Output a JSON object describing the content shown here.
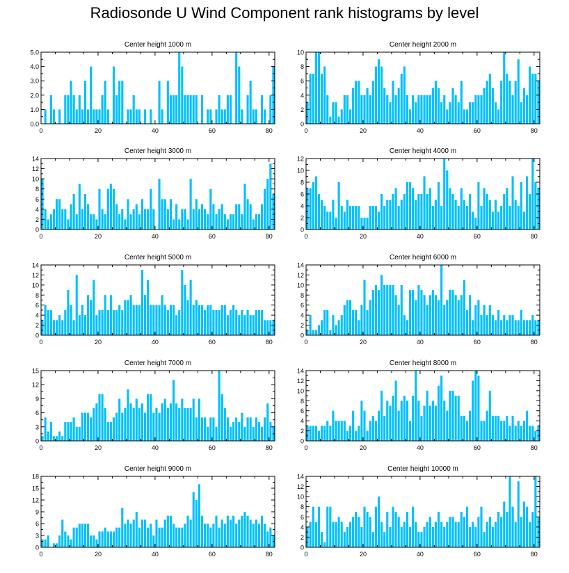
{
  "title": "Radiosonde U Wind Component rank histograms by level",
  "colors": {
    "bar": "#00BFFF",
    "axis": "#000000",
    "background": "#FFFFFF"
  },
  "chart_data": [
    {
      "type": "bar",
      "title": "Center height 1000 m",
      "xlabel": "",
      "ylabel": "",
      "xlim": [
        0,
        82
      ],
      "ylim": [
        0,
        5
      ],
      "xticks": [
        "0",
        "20",
        "40",
        "60",
        "80"
      ],
      "yticks": [
        "0.0",
        "1.0",
        "2.0",
        "3.0",
        "4.0",
        "5.0"
      ],
      "values": [
        0,
        1,
        0,
        2,
        1,
        0,
        1,
        0,
        2,
        2,
        3,
        2,
        1,
        2,
        1,
        3,
        1,
        4,
        1,
        1,
        1,
        2,
        3,
        1,
        0,
        4,
        2,
        3,
        3,
        0,
        1,
        1,
        2,
        1,
        1,
        0,
        1,
        0,
        1,
        0,
        0,
        3,
        1,
        0,
        3,
        2,
        2,
        2,
        5,
        4,
        2,
        2,
        2,
        2,
        2,
        0,
        2,
        0,
        1,
        1,
        0,
        1,
        2,
        1,
        1,
        2,
        2,
        0,
        5,
        4,
        1,
        0,
        2,
        3,
        1,
        1,
        0,
        2,
        1,
        0,
        2,
        4
      ]
    },
    {
      "type": "bar",
      "title": "Center height 2000 m",
      "xlabel": "",
      "ylabel": "",
      "xlim": [
        0,
        82
      ],
      "ylim": [
        0,
        10
      ],
      "xticks": [
        "0",
        "20",
        "40",
        "60",
        "80"
      ],
      "yticks": [
        "0",
        "2",
        "4",
        "6",
        "8",
        "10"
      ],
      "values": [
        3,
        7,
        7,
        10,
        10,
        7,
        8,
        4,
        1,
        3,
        3,
        1,
        2,
        4,
        4,
        2,
        5,
        6,
        6,
        4,
        4,
        5,
        4,
        6,
        8,
        9,
        8,
        5,
        4,
        3,
        6,
        4,
        5,
        7,
        8,
        4,
        2,
        4,
        3,
        4,
        4,
        4,
        4,
        4,
        5,
        6,
        5,
        3,
        4,
        2,
        3,
        5,
        4,
        3,
        6,
        2,
        2,
        3,
        3,
        4,
        4,
        4,
        5,
        6,
        7,
        5,
        3,
        2,
        6,
        10,
        7,
        6,
        4,
        6,
        9,
        3,
        5,
        4,
        8,
        7,
        7,
        6
      ]
    },
    {
      "type": "bar",
      "title": "Center height 3000 m",
      "xlabel": "",
      "ylabel": "",
      "xlim": [
        0,
        82
      ],
      "ylim": [
        0,
        14
      ],
      "xticks": [
        "0",
        "20",
        "40",
        "60",
        "80"
      ],
      "yticks": [
        "0",
        "2",
        "4",
        "6",
        "8",
        "10",
        "12",
        "14"
      ],
      "values": [
        10,
        4,
        2,
        3,
        4,
        6,
        6,
        4,
        4,
        2,
        5,
        7,
        3,
        9,
        4,
        7,
        5,
        3,
        3,
        2,
        8,
        4,
        3,
        8,
        9,
        8,
        5,
        3,
        4,
        2,
        6,
        3,
        4,
        5,
        3,
        6,
        4,
        4,
        8,
        4,
        0,
        10,
        6,
        6,
        4,
        6,
        2,
        5,
        2,
        4,
        4,
        2,
        10,
        4,
        6,
        4,
        5,
        4,
        3,
        8,
        5,
        3,
        4,
        5,
        3,
        2,
        3,
        3,
        5,
        5,
        3,
        9,
        6,
        5,
        2,
        3,
        3,
        5,
        8,
        10,
        13,
        7
      ]
    },
    {
      "type": "bar",
      "title": "Center height 4000 m",
      "xlabel": "",
      "ylabel": "",
      "xlim": [
        0,
        82
      ],
      "ylim": [
        0,
        12
      ],
      "xticks": [
        "0",
        "20",
        "40",
        "60",
        "80"
      ],
      "yticks": [
        "0",
        "2",
        "4",
        "6",
        "8",
        "10",
        "12"
      ],
      "values": [
        7,
        7,
        8,
        9,
        6,
        5,
        4,
        3,
        3,
        5,
        2,
        8,
        4,
        3,
        5,
        4,
        4,
        4,
        4,
        2,
        2,
        2,
        4,
        4,
        4,
        3,
        6,
        4,
        5,
        5,
        6,
        7,
        4,
        5,
        6,
        8,
        8,
        7,
        5,
        6,
        6,
        9,
        6,
        7,
        4,
        5,
        8,
        4,
        12,
        10,
        7,
        6,
        5,
        4,
        7,
        5,
        4,
        6,
        3,
        2,
        8,
        4,
        7,
        6,
        5,
        3,
        5,
        3,
        4,
        6,
        7,
        4,
        9,
        5,
        4,
        8,
        3,
        9,
        6,
        12,
        8,
        7
      ]
    },
    {
      "type": "bar",
      "title": "Center height 5000 m",
      "xlabel": "",
      "ylabel": "",
      "xlim": [
        0,
        82
      ],
      "ylim": [
        0,
        14
      ],
      "xticks": [
        "0",
        "20",
        "40",
        "60",
        "80"
      ],
      "yticks": [
        "0",
        "2",
        "4",
        "6",
        "8",
        "10",
        "12",
        "14"
      ],
      "values": [
        3,
        6,
        5,
        5,
        3,
        3,
        4,
        3,
        5,
        9,
        6,
        3,
        12,
        4,
        6,
        4,
        8,
        7,
        11,
        4,
        5,
        5,
        8,
        5,
        8,
        5,
        5,
        6,
        5,
        7,
        7,
        8,
        6,
        6,
        6,
        13,
        8,
        11,
        6,
        6,
        6,
        6,
        8,
        6,
        5,
        6,
        6,
        4,
        5,
        13,
        10,
        7,
        11,
        6,
        7,
        6,
        6,
        5,
        6,
        6,
        5,
        5,
        5,
        6,
        6,
        4,
        5,
        6,
        5,
        4,
        5,
        4,
        5,
        4,
        4,
        5,
        5,
        5,
        3,
        3,
        3,
        3
      ]
    },
    {
      "type": "bar",
      "title": "Center height 6000 m",
      "xlabel": "",
      "ylabel": "",
      "xlim": [
        0,
        82
      ],
      "ylim": [
        0,
        14
      ],
      "xticks": [
        "0",
        "20",
        "40",
        "60",
        "80"
      ],
      "yticks": [
        "0",
        "2",
        "4",
        "6",
        "8",
        "10",
        "12",
        "14"
      ],
      "values": [
        1,
        4,
        1,
        1,
        2,
        3,
        5,
        5,
        1,
        4,
        2,
        3,
        4,
        6,
        7,
        7,
        5,
        5,
        3,
        6,
        11,
        5,
        7,
        9,
        10,
        9,
        12,
        10,
        10,
        10,
        10,
        8,
        6,
        10,
        4,
        3,
        9,
        9,
        7,
        10,
        9,
        8,
        6,
        8,
        9,
        8,
        7,
        14,
        6,
        7,
        9,
        9,
        8,
        7,
        8,
        11,
        5,
        8,
        3,
        6,
        7,
        4,
        6,
        4,
        6,
        4,
        3,
        5,
        3,
        4,
        3,
        4,
        4,
        3,
        3,
        5,
        3,
        3,
        3,
        4,
        3,
        3
      ]
    },
    {
      "type": "bar",
      "title": "Center height 7000 m",
      "xlabel": "",
      "ylabel": "",
      "xlim": [
        0,
        82
      ],
      "ylim": [
        0,
        15
      ],
      "xticks": [
        "0",
        "20",
        "40",
        "60",
        "80"
      ],
      "yticks": [
        "0",
        "3",
        "6",
        "9",
        "12",
        "15"
      ],
      "values": [
        1,
        5,
        2,
        4,
        1,
        1,
        2,
        1,
        4,
        4,
        4,
        5,
        3,
        3,
        6,
        6,
        6,
        5,
        7,
        8,
        10,
        10,
        7,
        4,
        4,
        5,
        6,
        9,
        6,
        7,
        11,
        8,
        7,
        9,
        7,
        8,
        6,
        10,
        10,
        6,
        7,
        6,
        8,
        9,
        7,
        8,
        13,
        8,
        7,
        9,
        7,
        7,
        7,
        9,
        5,
        9,
        5,
        5,
        3,
        5,
        5,
        3,
        15,
        10,
        7,
        5,
        3,
        4,
        5,
        4,
        6,
        3,
        5,
        5,
        3,
        5,
        4,
        3,
        5,
        8,
        4,
        3
      ]
    },
    {
      "type": "bar",
      "title": "Center height 8000 m",
      "xlabel": "",
      "ylabel": "",
      "xlim": [
        0,
        82
      ],
      "ylim": [
        0,
        14
      ],
      "xticks": [
        "0",
        "20",
        "40",
        "60",
        "80"
      ],
      "yticks": [
        "0",
        "2",
        "4",
        "6",
        "8",
        "10",
        "12",
        "14"
      ],
      "values": [
        3,
        3,
        3,
        3,
        2,
        3,
        3,
        4,
        3,
        6,
        4,
        4,
        4,
        4,
        2,
        3,
        6,
        2,
        3,
        8,
        6,
        2,
        4,
        5,
        4,
        6,
        10,
        5,
        8,
        7,
        9,
        12,
        6,
        8,
        9,
        8,
        4,
        9,
        14,
        8,
        5,
        7,
        10,
        7,
        8,
        7,
        11,
        13,
        8,
        6,
        10,
        10,
        9,
        9,
        5,
        5,
        4,
        6,
        12,
        14,
        13,
        4,
        4,
        6,
        10,
        5,
        5,
        5,
        4,
        4,
        5,
        3,
        5,
        3,
        4,
        3,
        4,
        6,
        3,
        3,
        2,
        3
      ]
    },
    {
      "type": "bar",
      "title": "Center height 9000 m",
      "xlabel": "",
      "ylabel": "",
      "xlim": [
        0,
        82
      ],
      "ylim": [
        0,
        18
      ],
      "xticks": [
        "0",
        "20",
        "40",
        "60",
        "80"
      ],
      "yticks": [
        "0",
        "3",
        "6",
        "9",
        "12",
        "15",
        "18"
      ],
      "values": [
        2,
        2,
        3,
        0,
        1,
        1,
        3,
        7,
        4,
        3,
        2,
        5,
        5,
        6,
        6,
        6,
        6,
        3,
        3,
        2,
        4,
        4,
        5,
        4,
        4,
        4,
        5,
        5,
        10,
        6,
        7,
        6,
        7,
        9,
        5,
        7,
        7,
        5,
        6,
        3,
        7,
        5,
        5,
        7,
        8,
        8,
        6,
        5,
        5,
        5,
        6,
        8,
        7,
        14,
        12,
        16,
        8,
        6,
        6,
        5,
        6,
        8,
        5,
        7,
        6,
        8,
        7,
        8,
        6,
        7,
        8,
        9,
        8,
        7,
        6,
        7,
        6,
        8,
        6,
        4,
        5,
        3
      ]
    },
    {
      "type": "bar",
      "title": "Center height 10000 m",
      "xlabel": "",
      "ylabel": "",
      "xlim": [
        0,
        82
      ],
      "ylim": [
        0,
        14
      ],
      "xticks": [
        "0",
        "20",
        "40",
        "60",
        "80"
      ],
      "yticks": [
        "0",
        "2",
        "4",
        "6",
        "8",
        "10",
        "12",
        "14"
      ],
      "values": [
        4,
        5,
        8,
        5,
        8,
        3,
        1,
        8,
        8,
        5,
        5,
        6,
        5,
        3,
        4,
        5,
        6,
        7,
        6,
        4,
        8,
        7,
        6,
        3,
        8,
        10,
        5,
        3,
        7,
        4,
        8,
        7,
        6,
        4,
        5,
        7,
        4,
        8,
        5,
        3,
        3,
        4,
        5,
        6,
        4,
        5,
        7,
        5,
        4,
        5,
        6,
        6,
        5,
        5,
        7,
        6,
        8,
        4,
        5,
        4,
        6,
        8,
        3,
        5,
        6,
        4,
        5,
        7,
        6,
        9,
        7,
        14,
        8,
        5,
        13,
        6,
        9,
        8,
        5,
        7,
        14,
        6
      ]
    }
  ]
}
